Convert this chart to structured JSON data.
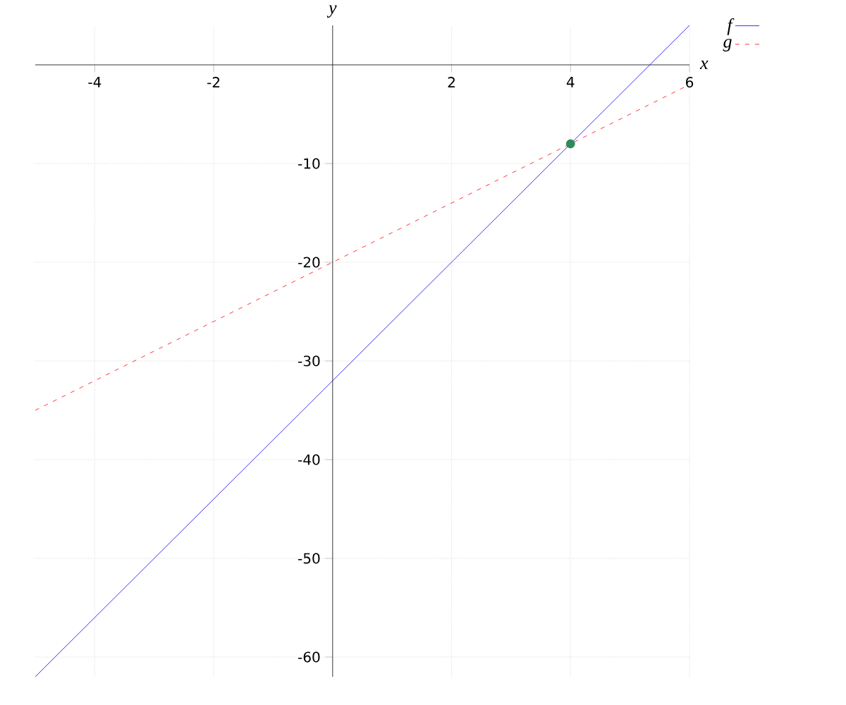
{
  "chart_data": {
    "type": "line",
    "xlabel": "x",
    "ylabel": "y",
    "xlim": [
      -5,
      6
    ],
    "ylim": [
      -62,
      4
    ],
    "xticks": [
      -4,
      -2,
      2,
      4,
      6
    ],
    "yticks": [
      -10,
      -20,
      -30,
      -40,
      -50,
      -60
    ],
    "grid": true,
    "legend": "top right",
    "series": [
      {
        "name": "f",
        "color": "#0000ff",
        "line_style": "solid",
        "x": [
          -5,
          6
        ],
        "values": [
          -62,
          4
        ]
      },
      {
        "name": "g",
        "color": "#ff0000",
        "line_style": "dashed",
        "x": [
          -5,
          6
        ],
        "values": [
          -35,
          -2
        ]
      },
      {
        "type": "scatter",
        "color": "#2e8b57",
        "marker": "circle",
        "x": [
          4
        ],
        "values": [
          -8
        ]
      }
    ]
  }
}
